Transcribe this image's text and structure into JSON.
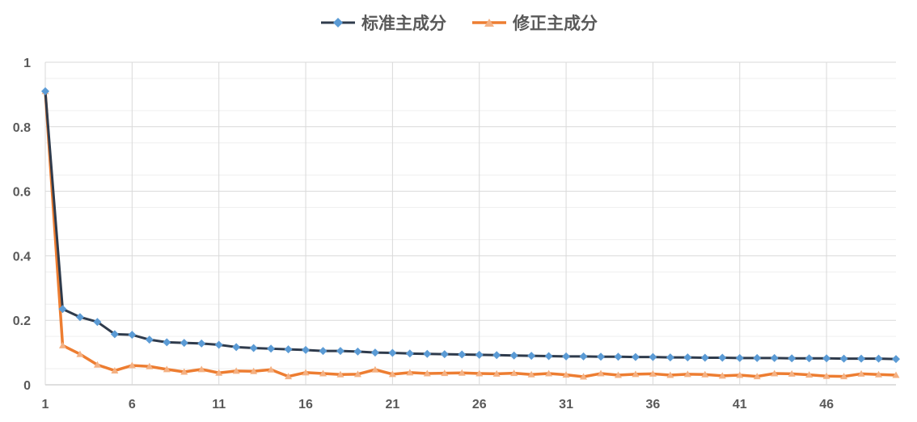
{
  "chart_data": {
    "type": "line",
    "title": "",
    "xlabel": "",
    "ylabel": "",
    "x": [
      1,
      2,
      3,
      4,
      5,
      6,
      7,
      8,
      9,
      10,
      11,
      12,
      13,
      14,
      15,
      16,
      17,
      18,
      19,
      20,
      21,
      22,
      23,
      24,
      25,
      26,
      27,
      28,
      29,
      30,
      31,
      32,
      33,
      34,
      35,
      36,
      37,
      38,
      39,
      40,
      41,
      42,
      43,
      44,
      45,
      46,
      47,
      48,
      49,
      50
    ],
    "xticks": [
      "1",
      "6",
      "11",
      "16",
      "21",
      "26",
      "31",
      "36",
      "41",
      "46"
    ],
    "yticks": [
      "0",
      "0.2",
      "0.4",
      "0.6",
      "0.8",
      "1"
    ],
    "ylim": [
      0,
      1
    ],
    "grid": true,
    "legend_position": "top",
    "series": [
      {
        "name": "标准主成分",
        "color": "#2f3b4c",
        "marker_color": "#5b9bd5",
        "marker": "diamond",
        "values": [
          0.91,
          0.235,
          0.21,
          0.195,
          0.157,
          0.155,
          0.14,
          0.132,
          0.13,
          0.128,
          0.124,
          0.117,
          0.114,
          0.112,
          0.11,
          0.108,
          0.105,
          0.105,
          0.103,
          0.1,
          0.099,
          0.097,
          0.096,
          0.095,
          0.094,
          0.093,
          0.092,
          0.091,
          0.09,
          0.089,
          0.088,
          0.088,
          0.087,
          0.087,
          0.086,
          0.086,
          0.085,
          0.085,
          0.084,
          0.084,
          0.083,
          0.083,
          0.083,
          0.082,
          0.082,
          0.082,
          0.081,
          0.081,
          0.081,
          0.08
        ]
      },
      {
        "name": "修正主成分",
        "color": "#ed7d31",
        "marker_color": "#f4b183",
        "marker": "triangle",
        "values": [
          0.91,
          0.122,
          0.095,
          0.062,
          0.044,
          0.06,
          0.057,
          0.048,
          0.04,
          0.048,
          0.037,
          0.043,
          0.042,
          0.047,
          0.026,
          0.038,
          0.035,
          0.032,
          0.033,
          0.047,
          0.033,
          0.038,
          0.035,
          0.036,
          0.037,
          0.035,
          0.034,
          0.036,
          0.032,
          0.035,
          0.031,
          0.025,
          0.035,
          0.03,
          0.033,
          0.034,
          0.03,
          0.033,
          0.032,
          0.028,
          0.03,
          0.026,
          0.035,
          0.034,
          0.031,
          0.027,
          0.026,
          0.034,
          0.032,
          0.03
        ]
      }
    ]
  }
}
